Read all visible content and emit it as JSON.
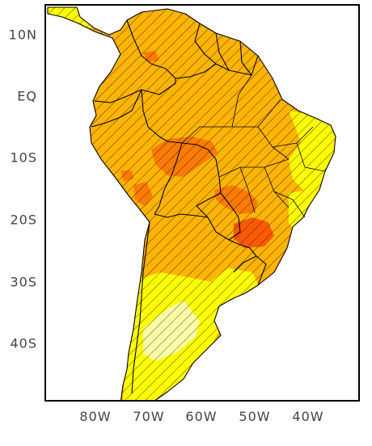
{
  "map": {
    "lat_labels": [
      "10N",
      "EQ",
      "10S",
      "20S",
      "30S",
      "40S"
    ],
    "lon_labels": [
      "80W",
      "70W",
      "60W",
      "50W",
      "40W"
    ],
    "colors": {
      "light": "#ffffa8",
      "yellow": "#ffff00",
      "orange": "#ffb400",
      "dark_orange": "#ff7b00",
      "red_orange": "#ff5a00",
      "hatch": "#000000",
      "border": "#000000"
    }
  }
}
